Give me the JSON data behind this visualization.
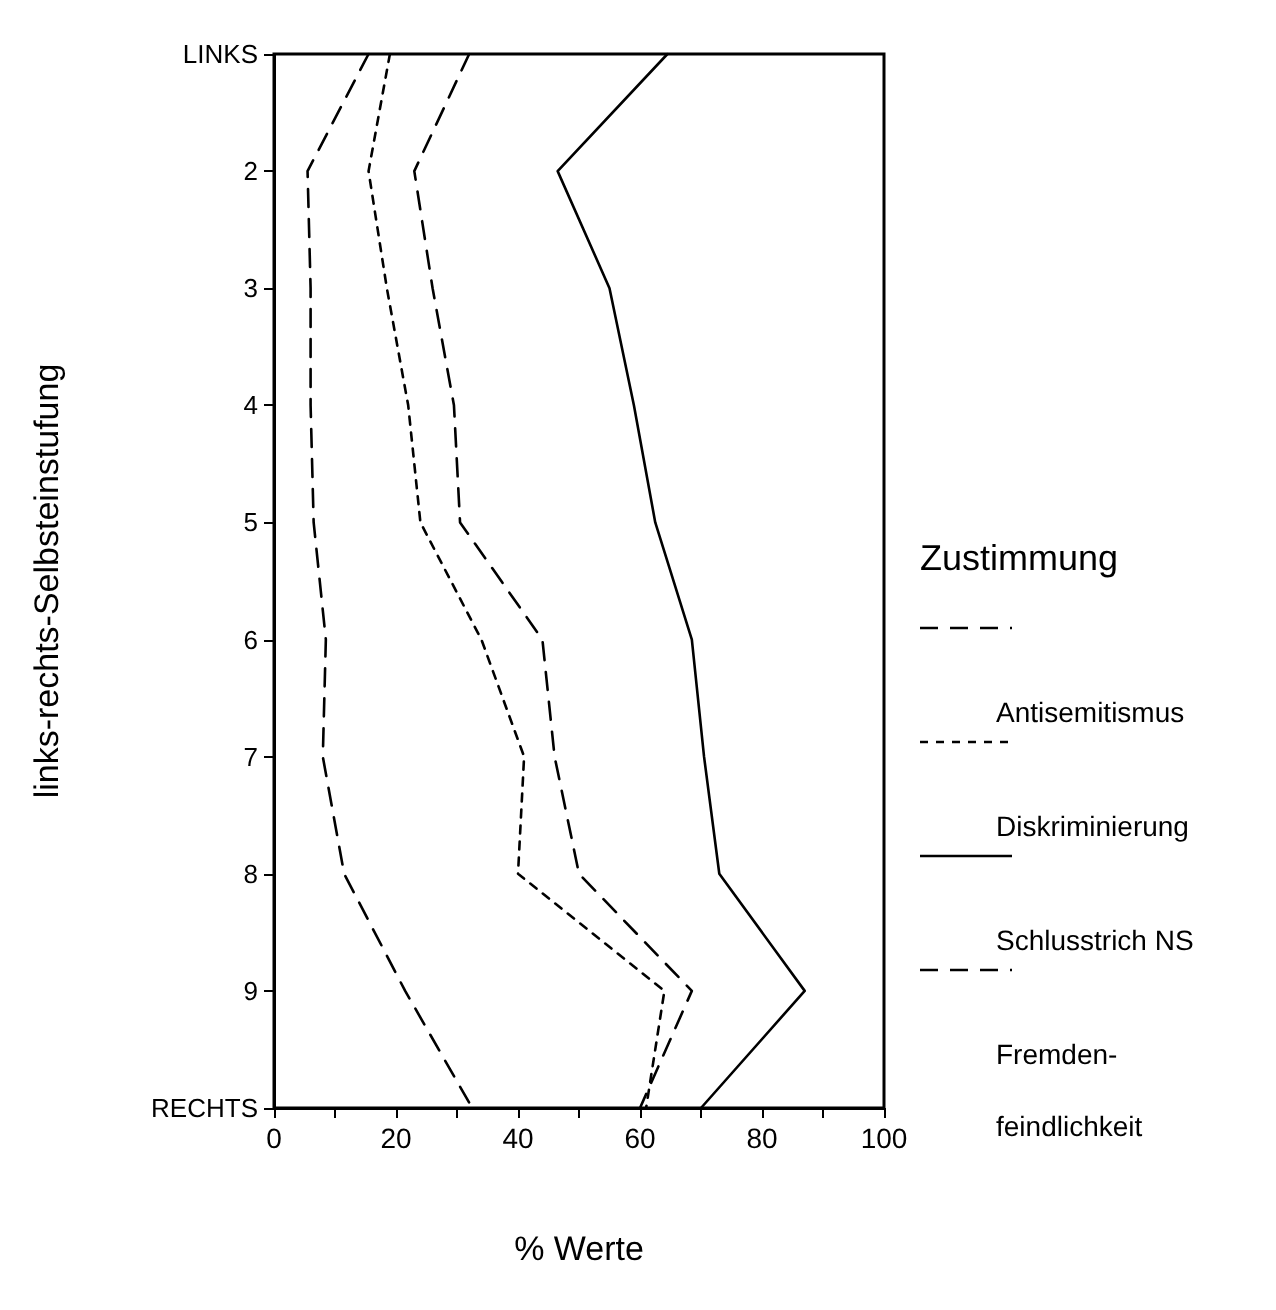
{
  "chart_data": {
    "type": "line",
    "orientation": "horizontal",
    "xlabel": "% Werte",
    "ylabel": "links-rechts-Selbsteinstufung",
    "legend_title": "Zustimmung",
    "categories": [
      "LINKS",
      "2",
      "3",
      "4",
      "5",
      "6",
      "7",
      "8",
      "9",
      "RECHTS"
    ],
    "series": [
      {
        "name": "Antisemitismus",
        "color": "#000000",
        "line_style": "dashed",
        "values": [
          32,
          23,
          26,
          29.5,
          30.5,
          44,
          46,
          50,
          68.5,
          60
        ]
      },
      {
        "name": "Diskriminierung",
        "color": "#000000",
        "line_style": "dotted",
        "values": [
          19,
          15.5,
          18.5,
          22,
          24,
          34,
          41,
          40,
          64,
          61
        ]
      },
      {
        "name": "Schlusstrich NS",
        "color": "#000000",
        "line_style": "solid",
        "values": [
          64.5,
          46.5,
          55,
          59,
          62.5,
          68.5,
          70.5,
          73,
          87,
          70
        ]
      },
      {
        "name": "Fremden-feindlichkeit",
        "color": "#000000",
        "line_style": "dashed",
        "values": [
          15.5,
          5.5,
          6,
          6,
          6.5,
          8.5,
          8,
          11.5,
          21.5,
          32.5
        ]
      }
    ],
    "xlim": [
      0,
      100
    ],
    "xticks": [
      0,
      {
        "value": 10,
        "label": null
      },
      20,
      {
        "value": 30,
        "label": null
      },
      40,
      {
        "value": 50,
        "label": null
      },
      60,
      {
        "value": 70,
        "label": null
      },
      80,
      {
        "value": 90,
        "label": null
      },
      100
    ],
    "grid": false,
    "legend": "right",
    "marker": "none"
  }
}
